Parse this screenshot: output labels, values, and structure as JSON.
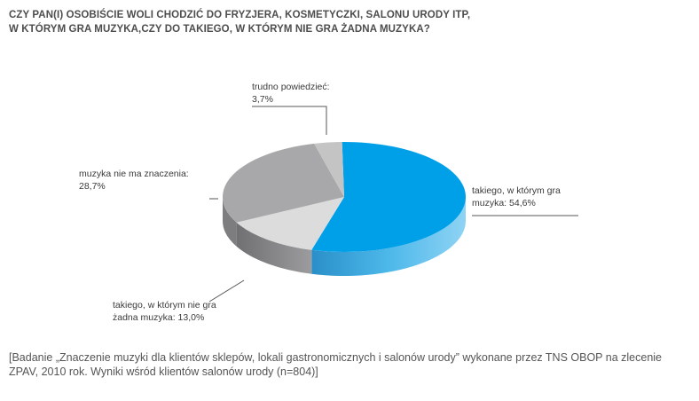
{
  "title": {
    "line1": "CZY PAN(I) OSOBIŚCIE WOLI CHODZIĆ DO FRYZJERA, KOSMETYCZKI, SALONU URODY ITP,",
    "line2": "W KTÓRYM GRA MUZYKA,CZY DO TAKIEGO, W KTÓRYM NIE GRA ŻADNA MUZYKA?"
  },
  "chart_data": {
    "type": "pie",
    "style": "3d",
    "title": "CZY PAN(I) OSOBIŚCIE WOLI CHODZIĆ DO FRYZJERA, KOSMETYCZKI, SALONU URODY ITP, W KTÓRYM GRA MUZYKA,CZY DO TAKIEGO, W KTÓRYM NIE GRA ŻADNA MUZYKA?",
    "slices": [
      {
        "label_lines": [
          "takiego, w którym gra",
          "muzyka: 54,6%"
        ],
        "value": 54.6,
        "color": "#00a0e9",
        "side": "#3fb6ea"
      },
      {
        "label_lines": [
          "takiego, w którym nie gra",
          "żadna muzyka: 13,0%"
        ],
        "value": 13.0,
        "color": "#dcdcdd",
        "side": "#8e8e90"
      },
      {
        "label_lines": [
          "muzyka nie ma znaczenia:",
          "28,7%"
        ],
        "value": 28.7,
        "color": "#a8a8aa",
        "side": "#7d7d80"
      },
      {
        "label_lines": [
          "trudno powiedzieć:",
          "3,7%"
        ],
        "value": 3.7,
        "color": "#c4c4c5",
        "side": "#9a9a9c"
      }
    ]
  },
  "footnote": {
    "line1": "[Badanie „Znaczenie muzyki dla klientów sklepów, lokali gastronomicznych i salonów urody” wykonane przez TNS OBOP na zlecenie",
    "line2": "ZPAV, 2010 rok. Wyniki wśród klientów salonów urody (n=804)]"
  }
}
